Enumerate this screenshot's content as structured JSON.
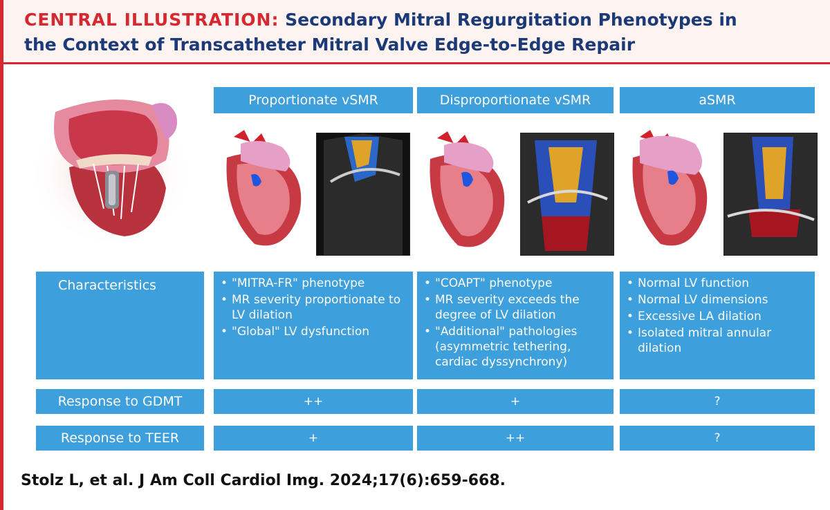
{
  "header": {
    "title_prefix": "CENTRAL ILLUSTRATION:",
    "title_line1_rest": "Secondary Mitral Regurgitation Phenotypes in",
    "title_line2": "the Context of Transcatheter Mitral Valve Edge-to-Edge Repair"
  },
  "columns": [
    {
      "heading": "Proportionate vSMR",
      "characteristics": [
        "\"MITRA-FR\" phenotype",
        "MR severity proportionate to LV dilation",
        "\"Global\" LV dysfunction"
      ],
      "gdmt": "++",
      "teer": "+"
    },
    {
      "heading": "Disproportionate vSMR",
      "characteristics": [
        "\"COAPT\" phenotype",
        "MR severity exceeds the degree of LV dilation",
        "\"Additional\" pathologies (asymmetric tethering, cardiac dyssynchrony)"
      ],
      "gdmt": "+",
      "teer": "++"
    },
    {
      "heading": "aSMR",
      "characteristics": [
        "Normal LV function",
        "Normal LV dimensions",
        "Excessive LA dilation",
        "Isolated mitral annular dilation"
      ],
      "gdmt": "?",
      "teer": "?"
    }
  ],
  "rows": {
    "characteristics": "Characteristics",
    "gdmt": "Response to GDMT",
    "teer": "Response to TEER"
  },
  "citation": "Stolz L, et al. J Am Coll Cardiol Img. 2024;17(6):659-668.",
  "colors": {
    "accent_red": "#d7282f",
    "title_navy": "#1d3a78",
    "box_blue": "#3d9fdb"
  },
  "icons": [
    "mitral-clip-heart-illustration",
    "heart-illustration",
    "echocardiogram-image"
  ]
}
